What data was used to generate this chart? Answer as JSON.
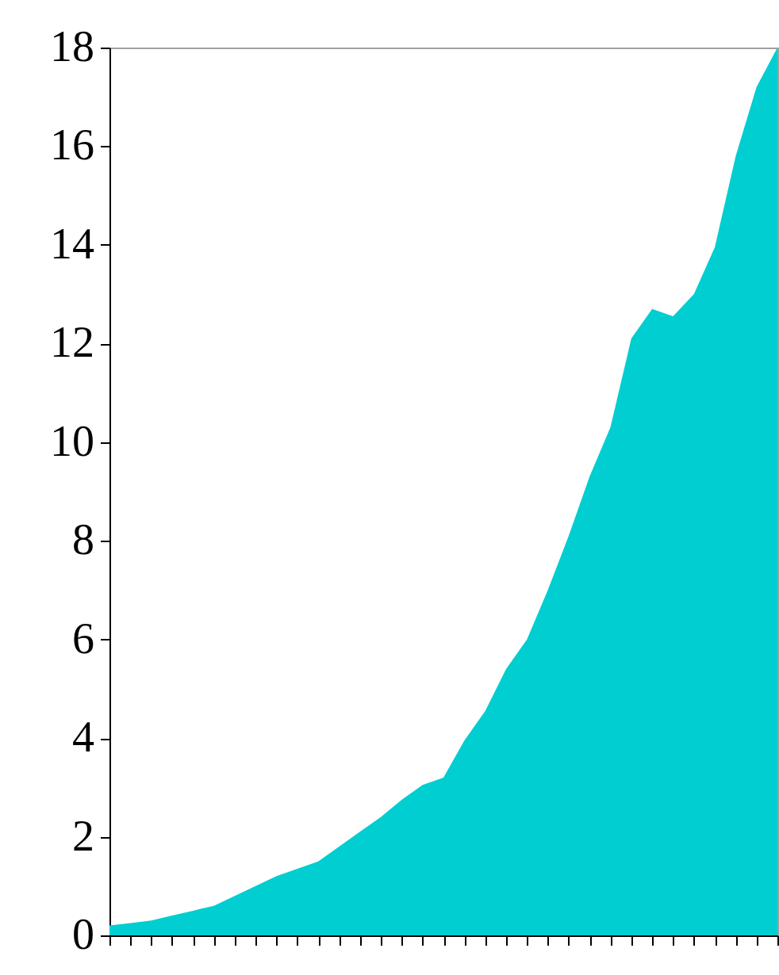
{
  "chart_data": {
    "type": "area",
    "color": "#00ced1",
    "categories": [
      null,
      null,
      null,
      null,
      null,
      null,
      null,
      null,
      null,
      null,
      null,
      null,
      null,
      null,
      null,
      null,
      null,
      null,
      null,
      null,
      null,
      null,
      null,
      null,
      null,
      null,
      null,
      null,
      null,
      null,
      null,
      null,
      null
    ],
    "values": [
      0.2,
      0.25,
      0.3,
      0.4,
      0.5,
      0.6,
      0.8,
      1.0,
      1.2,
      1.35,
      1.5,
      1.8,
      2.1,
      2.4,
      2.75,
      3.05,
      3.2,
      3.95,
      4.55,
      5.4,
      6.0,
      7.0,
      8.1,
      9.3,
      10.3,
      12.1,
      12.7,
      12.55,
      13.0,
      13.95,
      15.8,
      17.2,
      18.0
    ],
    "ylim": [
      0,
      18
    ],
    "yticks": [
      0,
      2,
      4,
      6,
      8,
      10,
      12,
      14,
      16,
      18
    ],
    "grid": false,
    "tick_labels": "y"
  }
}
